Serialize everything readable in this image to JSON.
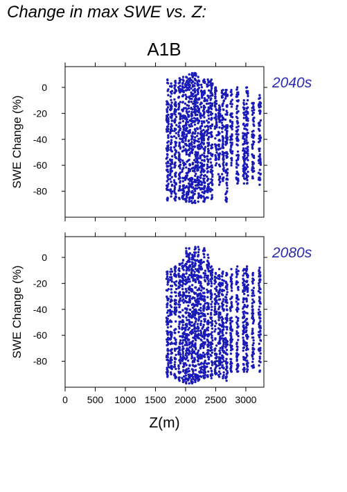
{
  "page_title": "Change in max SWE vs. Z:",
  "scenario_label": "A1B",
  "colors": {
    "points": "#1a1ab8",
    "panel_label": "#2a2ab0",
    "axis": "#000000"
  },
  "chart_data": [
    {
      "type": "scatter",
      "panel_label": "2040s",
      "xlabel": "",
      "ylabel": "SWE Change (%)",
      "xlim": [
        0,
        3300
      ],
      "ylim": [
        -100,
        16
      ],
      "xticks": [
        0,
        500,
        1000,
        1500,
        2000,
        2500,
        3000
      ],
      "yticks": [
        0,
        -20,
        -40,
        -60,
        -80
      ],
      "x_tick_labels_shown": false,
      "columns": [
        {
          "x": 1700,
          "ymin": -87,
          "ymax": 6
        },
        {
          "x": 1760,
          "ymin": -84,
          "ymax": 3
        },
        {
          "x": 1830,
          "ymin": -87,
          "ymax": 5
        },
        {
          "x": 1900,
          "ymin": -86,
          "ymax": 7
        },
        {
          "x": 1960,
          "ymin": -86,
          "ymax": 8
        },
        {
          "x": 2010,
          "ymin": -88,
          "ymax": 8
        },
        {
          "x": 2060,
          "ymin": -88,
          "ymax": 10
        },
        {
          "x": 2110,
          "ymin": -89,
          "ymax": 11
        },
        {
          "x": 2160,
          "ymin": -89,
          "ymax": 11
        },
        {
          "x": 2210,
          "ymin": -88,
          "ymax": 8
        },
        {
          "x": 2260,
          "ymin": -85,
          "ymax": 2
        },
        {
          "x": 2310,
          "ymin": -88,
          "ymax": 6
        },
        {
          "x": 2370,
          "ymin": -85,
          "ymax": 6
        },
        {
          "x": 2430,
          "ymin": -86,
          "ymax": 6
        },
        {
          "x": 2500,
          "ymin": -60,
          "ymax": 0
        },
        {
          "x": 2560,
          "ymin": -75,
          "ymax": -14
        },
        {
          "x": 2620,
          "ymin": -72,
          "ymax": -2
        },
        {
          "x": 2680,
          "ymin": -88,
          "ymax": -2
        },
        {
          "x": 2760,
          "ymin": -60,
          "ymax": -2
        },
        {
          "x": 2860,
          "ymin": -74,
          "ymax": 0
        },
        {
          "x": 2970,
          "ymin": -74,
          "ymax": -10
        },
        {
          "x": 3020,
          "ymin": -74,
          "ymax": 0
        },
        {
          "x": 3120,
          "ymin": -70,
          "ymax": -12
        },
        {
          "x": 3230,
          "ymin": -75,
          "ymax": -6
        }
      ]
    },
    {
      "type": "scatter",
      "panel_label": "2080s",
      "xlabel": "Z(m)",
      "ylabel": "SWE Change (%)",
      "xlim": [
        0,
        3300
      ],
      "ylim": [
        -100,
        16
      ],
      "xticks": [
        0,
        500,
        1000,
        1500,
        2000,
        2500,
        3000
      ],
      "xtick_labels": [
        "0",
        "500",
        "1000",
        "1500",
        "2000",
        "2500",
        "3000"
      ],
      "yticks": [
        0,
        -20,
        -40,
        -60,
        -80
      ],
      "x_tick_labels_shown": true,
      "columns": [
        {
          "x": 1700,
          "ymin": -92,
          "ymax": -11
        },
        {
          "x": 1760,
          "ymin": -90,
          "ymax": -9
        },
        {
          "x": 1830,
          "ymin": -93,
          "ymax": -7
        },
        {
          "x": 1900,
          "ymin": -95,
          "ymax": -5
        },
        {
          "x": 1960,
          "ymin": -96,
          "ymax": -2
        },
        {
          "x": 2010,
          "ymin": -97,
          "ymax": 7
        },
        {
          "x": 2060,
          "ymin": -97,
          "ymax": 7
        },
        {
          "x": 2110,
          "ymin": -97,
          "ymax": 2
        },
        {
          "x": 2160,
          "ymin": -96,
          "ymax": 8
        },
        {
          "x": 2210,
          "ymin": -95,
          "ymax": 8
        },
        {
          "x": 2260,
          "ymin": -92,
          "ymax": -2
        },
        {
          "x": 2310,
          "ymin": -93,
          "ymax": 7
        },
        {
          "x": 2370,
          "ymin": -92,
          "ymax": 2
        },
        {
          "x": 2430,
          "ymin": -93,
          "ymax": -7
        },
        {
          "x": 2500,
          "ymin": -90,
          "ymax": -12
        },
        {
          "x": 2560,
          "ymin": -92,
          "ymax": -9
        },
        {
          "x": 2620,
          "ymin": -93,
          "ymax": -11
        },
        {
          "x": 2680,
          "ymin": -95,
          "ymax": -12
        },
        {
          "x": 2760,
          "ymin": -88,
          "ymax": -9
        },
        {
          "x": 2860,
          "ymin": -88,
          "ymax": -7
        },
        {
          "x": 2970,
          "ymin": -88,
          "ymax": -9
        },
        {
          "x": 3020,
          "ymin": -88,
          "ymax": -7
        },
        {
          "x": 3120,
          "ymin": -85,
          "ymax": -12
        },
        {
          "x": 3230,
          "ymin": -88,
          "ymax": -8
        }
      ]
    }
  ]
}
